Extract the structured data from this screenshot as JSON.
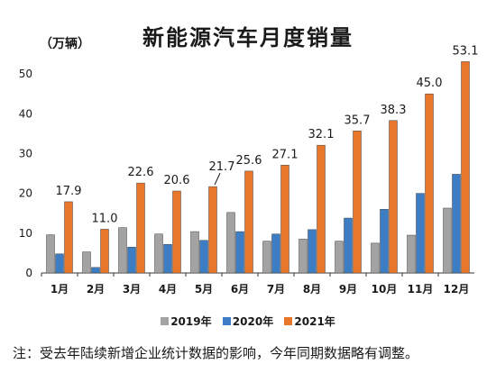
{
  "chart_data": {
    "type": "bar",
    "title": "新能源汽车月度销量",
    "ylabel": "（万辆）",
    "ylim": [
      0,
      55
    ],
    "yticks": [
      0,
      10,
      20,
      30,
      40,
      50
    ],
    "categories": [
      "1月",
      "2月",
      "3月",
      "4月",
      "5月",
      "6月",
      "7月",
      "8月",
      "9月",
      "10月",
      "11月",
      "12月"
    ],
    "series": [
      {
        "name": "2019年",
        "color": "#a3a3a3",
        "values": [
          9.6,
          5.3,
          11.4,
          9.8,
          10.4,
          15.2,
          8.0,
          8.5,
          8.0,
          7.5,
          9.5,
          16.3
        ]
      },
      {
        "name": "2020年",
        "color": "#3c7dc4",
        "values": [
          4.8,
          1.4,
          6.5,
          7.2,
          8.2,
          10.4,
          9.8,
          10.9,
          13.8,
          16.0,
          20.0,
          24.8
        ]
      },
      {
        "name": "2021年",
        "color": "#e8762b",
        "values": [
          17.9,
          11.0,
          22.6,
          20.6,
          21.7,
          25.6,
          27.1,
          32.1,
          35.7,
          38.3,
          45.0,
          53.1
        ]
      }
    ],
    "data_labels": [
      "17.9",
      "11.0",
      "22.6",
      "20.6",
      "21.7",
      "25.6",
      "27.1",
      "32.1",
      "35.7",
      "38.3",
      "45.0",
      "53.1"
    ],
    "legend_position": "bottom",
    "grid": false
  },
  "note": "注：受去年陆续新增企业统计数据的影响，今年同期数据略有调整。"
}
